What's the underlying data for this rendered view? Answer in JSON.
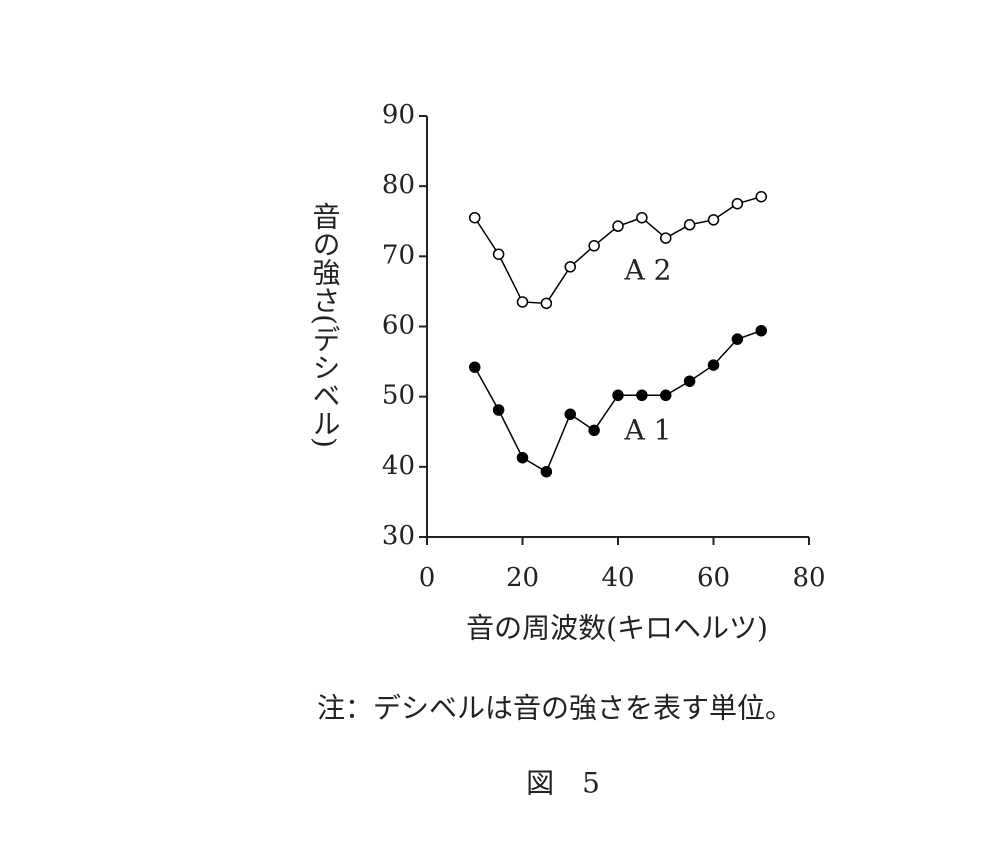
{
  "chart_data": {
    "type": "line",
    "y_label": "音の強さ(デシベル)",
    "x_label": "音の周波数(キロヘルツ)",
    "note": "注：デシベルは音の強さを表す単位。",
    "caption": "図　5",
    "x": [
      10,
      15,
      20,
      25,
      30,
      35,
      40,
      45,
      50,
      55,
      60,
      65,
      70
    ],
    "series": [
      {
        "name": "A 2",
        "color": "#000000",
        "marker": "open",
        "values": [
          75.5,
          70.3,
          63.5,
          63.3,
          68.5,
          71.5,
          74.3,
          75.5,
          72.6,
          74.5,
          75.2,
          77.5,
          78.5
        ]
      },
      {
        "name": "A 1",
        "color": "#000000",
        "marker": "filled",
        "values": [
          54.2,
          48.1,
          41.3,
          39.3,
          47.5,
          45.2,
          50.2,
          50.2,
          50.2,
          52.2,
          54.5,
          58.2,
          59.4
        ]
      }
    ],
    "xlim": [
      0,
      80
    ],
    "xticks": [
      0,
      20,
      40,
      60,
      80
    ],
    "ylim": [
      30,
      90
    ],
    "yticks": [
      30,
      40,
      50,
      60,
      70,
      80,
      90
    ],
    "grid": false
  }
}
